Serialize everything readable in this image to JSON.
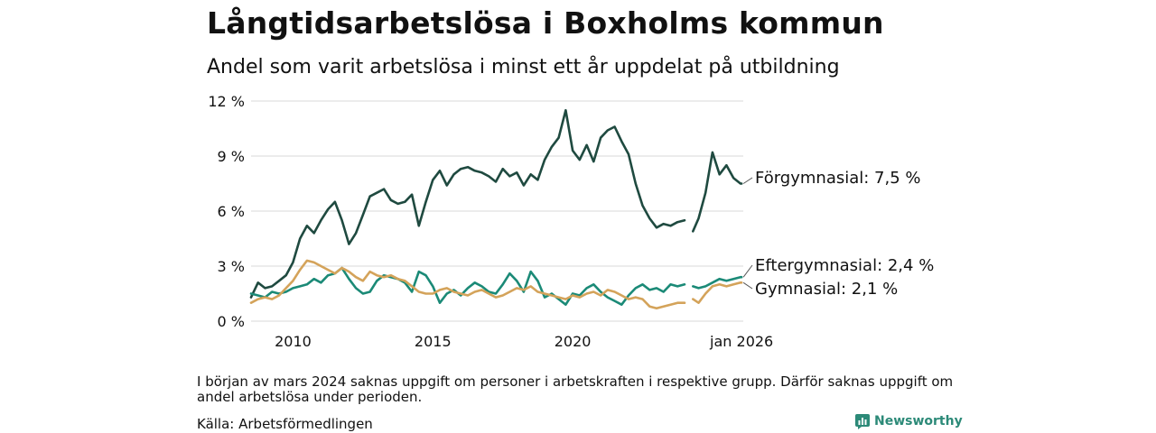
{
  "header": {
    "title": "Långtidsarbetslösa i Boxholms kommun",
    "subtitle": "Andel som varit arbetslösa i minst ett år uppdelat på utbildning"
  },
  "footer": {
    "note": "I början av mars 2024 saknas uppgift om personer i arbetskraften i respektive grupp. Därför saknas uppgift om andel arbetslösa under perioden.",
    "source": "Källa: Arbetsförmedlingen",
    "brand": "Newsworthy"
  },
  "chart_data": {
    "type": "line",
    "title": "Långtidsarbetslösa i Boxholms kommun",
    "subtitle": "Andel som varit arbetslösa i minst ett år uppdelat på utbildning",
    "xlabel": "",
    "ylabel": "",
    "xlim": [
      2008.5,
      2026.1
    ],
    "ylim": [
      0,
      12
    ],
    "grid": true,
    "y_ticks": [
      0,
      3,
      6,
      9,
      12
    ],
    "y_tick_labels": [
      "0 %",
      "3 %",
      "6 %",
      "9 %",
      "12 %"
    ],
    "x_ticks": [
      2010,
      2015,
      2020,
      2026.04
    ],
    "x_tick_labels": [
      "2010",
      "2015",
      "2020",
      "jan 2026"
    ],
    "gap": [
      2024.1,
      2024.3
    ],
    "end_labels": [
      "Förgymnasial: 7,5 %",
      "Eftergymnasial: 2,4 %",
      "Gymnasial: 2,1 %"
    ],
    "series": [
      {
        "name": "Förgymnasial",
        "color": "#1f4a40",
        "x": [
          2008.5,
          2008.75,
          2009.0,
          2009.25,
          2009.5,
          2009.75,
          2010.0,
          2010.25,
          2010.5,
          2010.75,
          2011.0,
          2011.25,
          2011.5,
          2011.75,
          2012.0,
          2012.25,
          2012.5,
          2012.75,
          2013.0,
          2013.25,
          2013.5,
          2013.75,
          2014.0,
          2014.25,
          2014.5,
          2014.75,
          2015.0,
          2015.25,
          2015.5,
          2015.75,
          2016.0,
          2016.25,
          2016.5,
          2016.75,
          2017.0,
          2017.25,
          2017.5,
          2017.75,
          2018.0,
          2018.25,
          2018.5,
          2018.75,
          2019.0,
          2019.25,
          2019.5,
          2019.75,
          2020.0,
          2020.25,
          2020.5,
          2020.75,
          2021.0,
          2021.25,
          2021.5,
          2021.75,
          2022.0,
          2022.25,
          2022.5,
          2022.75,
          2023.0,
          2023.25,
          2023.5,
          2023.75,
          2024.0,
          2024.3,
          2024.5,
          2024.75,
          2025.0,
          2025.25,
          2025.5,
          2025.75,
          2026.0,
          2026.04
        ],
        "values": [
          1.3,
          2.1,
          1.8,
          1.9,
          2.2,
          2.5,
          3.2,
          4.5,
          5.2,
          4.8,
          5.5,
          6.1,
          6.5,
          5.5,
          4.2,
          4.8,
          5.8,
          6.8,
          7.0,
          7.2,
          6.6,
          6.4,
          6.5,
          6.9,
          5.2,
          6.5,
          7.7,
          8.2,
          7.4,
          8.0,
          8.3,
          8.4,
          8.2,
          8.1,
          7.9,
          7.6,
          8.3,
          7.9,
          8.1,
          7.4,
          8.0,
          7.7,
          8.8,
          9.5,
          10.0,
          11.5,
          9.3,
          8.8,
          9.6,
          8.7,
          10.0,
          10.4,
          10.6,
          9.8,
          9.1,
          7.5,
          6.3,
          5.6,
          5.1,
          5.3,
          5.2,
          5.4,
          5.5,
          4.9,
          5.6,
          7.0,
          9.2,
          8.0,
          8.5,
          7.8,
          7.5,
          7.5
        ]
      },
      {
        "name": "Eftergymnasial",
        "color": "#1b8a77",
        "x": [
          2008.5,
          2008.75,
          2009.0,
          2009.25,
          2009.5,
          2009.75,
          2010.0,
          2010.25,
          2010.5,
          2010.75,
          2011.0,
          2011.25,
          2011.5,
          2011.75,
          2012.0,
          2012.25,
          2012.5,
          2012.75,
          2013.0,
          2013.25,
          2013.5,
          2013.75,
          2014.0,
          2014.25,
          2014.5,
          2014.75,
          2015.0,
          2015.25,
          2015.5,
          2015.75,
          2016.0,
          2016.25,
          2016.5,
          2016.75,
          2017.0,
          2017.25,
          2017.5,
          2017.75,
          2018.0,
          2018.25,
          2018.5,
          2018.75,
          2019.0,
          2019.25,
          2019.5,
          2019.75,
          2020.0,
          2020.25,
          2020.5,
          2020.75,
          2021.0,
          2021.25,
          2021.5,
          2021.75,
          2022.0,
          2022.25,
          2022.5,
          2022.75,
          2023.0,
          2023.25,
          2023.5,
          2023.75,
          2024.0,
          2024.3,
          2024.5,
          2024.75,
          2025.0,
          2025.25,
          2025.5,
          2025.75,
          2026.0,
          2026.04
        ],
        "values": [
          1.5,
          1.4,
          1.3,
          1.6,
          1.5,
          1.6,
          1.8,
          1.9,
          2.0,
          2.3,
          2.1,
          2.5,
          2.6,
          2.9,
          2.3,
          1.8,
          1.5,
          1.6,
          2.2,
          2.5,
          2.4,
          2.3,
          2.1,
          1.6,
          2.7,
          2.5,
          1.9,
          1.0,
          1.5,
          1.7,
          1.4,
          1.8,
          2.1,
          1.9,
          1.6,
          1.5,
          2.0,
          2.6,
          2.2,
          1.6,
          2.7,
          2.2,
          1.3,
          1.5,
          1.2,
          0.9,
          1.5,
          1.4,
          1.8,
          2.0,
          1.6,
          1.3,
          1.1,
          0.9,
          1.4,
          1.8,
          2.0,
          1.7,
          1.8,
          1.6,
          2.0,
          1.9,
          2.0,
          1.9,
          1.8,
          1.9,
          2.1,
          2.3,
          2.2,
          2.3,
          2.4,
          2.4
        ]
      },
      {
        "name": "Gymnasial",
        "color": "#d4a35a",
        "x": [
          2008.5,
          2008.75,
          2009.0,
          2009.25,
          2009.5,
          2009.75,
          2010.0,
          2010.25,
          2010.5,
          2010.75,
          2011.0,
          2011.25,
          2011.5,
          2011.75,
          2012.0,
          2012.25,
          2012.5,
          2012.75,
          2013.0,
          2013.25,
          2013.5,
          2013.75,
          2014.0,
          2014.25,
          2014.5,
          2014.75,
          2015.0,
          2015.25,
          2015.5,
          2015.75,
          2016.0,
          2016.25,
          2016.5,
          2016.75,
          2017.0,
          2017.25,
          2017.5,
          2017.75,
          2018.0,
          2018.25,
          2018.5,
          2018.75,
          2019.0,
          2019.25,
          2019.5,
          2019.75,
          2020.0,
          2020.25,
          2020.5,
          2020.75,
          2021.0,
          2021.25,
          2021.5,
          2021.75,
          2022.0,
          2022.25,
          2022.5,
          2022.75,
          2023.0,
          2023.25,
          2023.5,
          2023.75,
          2024.0,
          2024.3,
          2024.5,
          2024.75,
          2025.0,
          2025.25,
          2025.5,
          2025.75,
          2026.0,
          2026.04
        ],
        "values": [
          1.0,
          1.2,
          1.3,
          1.2,
          1.4,
          1.8,
          2.2,
          2.8,
          3.3,
          3.2,
          3.0,
          2.8,
          2.6,
          2.9,
          2.7,
          2.4,
          2.2,
          2.7,
          2.5,
          2.4,
          2.5,
          2.3,
          2.2,
          1.9,
          1.6,
          1.5,
          1.5,
          1.7,
          1.8,
          1.6,
          1.5,
          1.4,
          1.6,
          1.7,
          1.5,
          1.3,
          1.4,
          1.6,
          1.8,
          1.7,
          1.9,
          1.6,
          1.5,
          1.4,
          1.3,
          1.2,
          1.4,
          1.3,
          1.5,
          1.6,
          1.4,
          1.7,
          1.6,
          1.4,
          1.2,
          1.3,
          1.2,
          0.8,
          0.7,
          0.8,
          0.9,
          1.0,
          1.0,
          1.2,
          1.0,
          1.5,
          1.9,
          2.0,
          1.9,
          2.0,
          2.1,
          2.1
        ]
      }
    ]
  }
}
